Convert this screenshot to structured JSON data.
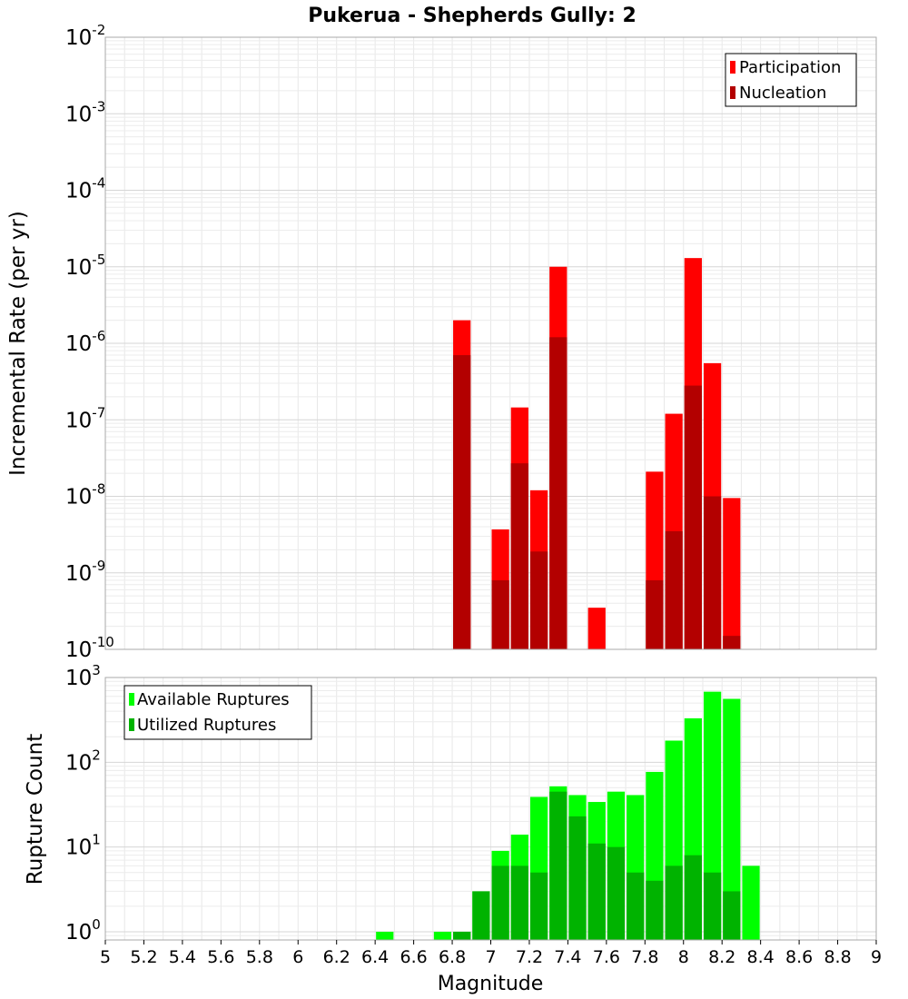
{
  "chart_data": [
    {
      "type": "bar",
      "title": "Pukerua - Shepherds Gully: 2",
      "xlabel": "",
      "ylabel": "Incremental Rate (per yr)",
      "yscale": "log",
      "ylim": [
        1e-10,
        0.01
      ],
      "xlim": [
        5,
        9
      ],
      "bin_width": 0.1,
      "y_tick_exponents": [
        "-10",
        "-9",
        "-8",
        "-7",
        "-6",
        "-5",
        "-4",
        "-3",
        "-2"
      ],
      "grid": true,
      "legend": "top-right",
      "series": [
        {
          "name": "Participation",
          "color": "#ff0000",
          "x": [
            6.85,
            7.05,
            7.15,
            7.25,
            7.35,
            7.55,
            7.85,
            7.95,
            8.05,
            8.15,
            8.25
          ],
          "values": [
            2e-06,
            3.7e-09,
            1.45e-07,
            1.2e-08,
            1e-05,
            3.5e-10,
            2.1e-08,
            1.2e-07,
            1.3e-05,
            5.5e-07,
            9.5e-09
          ]
        },
        {
          "name": "Nucleation",
          "color": "#b30000",
          "x": [
            6.85,
            7.05,
            7.15,
            7.25,
            7.35,
            7.85,
            7.95,
            8.05,
            8.15,
            8.25
          ],
          "values": [
            7e-07,
            8e-10,
            2.7e-08,
            1.9e-09,
            1.2e-06,
            8e-10,
            3.5e-09,
            2.8e-07,
            1e-08,
            1.5e-10
          ]
        }
      ]
    },
    {
      "type": "bar",
      "title": "",
      "xlabel": "Magnitude",
      "ylabel": "Rupture Count",
      "yscale": "log",
      "ylim": [
        0.8,
        1000
      ],
      "xlim": [
        5,
        9
      ],
      "bin_width": 0.1,
      "y_tick_exponents": [
        "0",
        "1",
        "2",
        "3"
      ],
      "x_ticks": [
        "5",
        "5.2",
        "5.4",
        "5.6",
        "5.8",
        "6",
        "6.2",
        "6.4",
        "6.6",
        "6.8",
        "7",
        "7.2",
        "7.4",
        "7.6",
        "7.8",
        "8",
        "8.2",
        "8.4",
        "8.6",
        "8.8",
        "9"
      ],
      "grid": true,
      "legend": "top-left",
      "series": [
        {
          "name": "Available Ruptures",
          "color": "#00ff00",
          "x": [
            6.45,
            6.75,
            6.85,
            6.95,
            7.05,
            7.15,
            7.25,
            7.35,
            7.45,
            7.55,
            7.65,
            7.75,
            7.85,
            7.95,
            8.05,
            8.15,
            8.25,
            8.35
          ],
          "values": [
            1,
            1,
            1,
            3,
            9,
            14,
            39,
            52,
            41,
            34,
            45,
            41,
            77,
            180,
            330,
            680,
            560,
            6
          ]
        },
        {
          "name": "Utilized Ruptures",
          "color": "#00b300",
          "x": [
            6.85,
            6.95,
            7.05,
            7.15,
            7.25,
            7.35,
            7.45,
            7.55,
            7.65,
            7.75,
            7.85,
            7.95,
            8.05,
            8.15,
            8.25
          ],
          "values": [
            1,
            3,
            6,
            6,
            5,
            45,
            23,
            11,
            10,
            5,
            4,
            6,
            8,
            5,
            3
          ]
        }
      ]
    }
  ]
}
